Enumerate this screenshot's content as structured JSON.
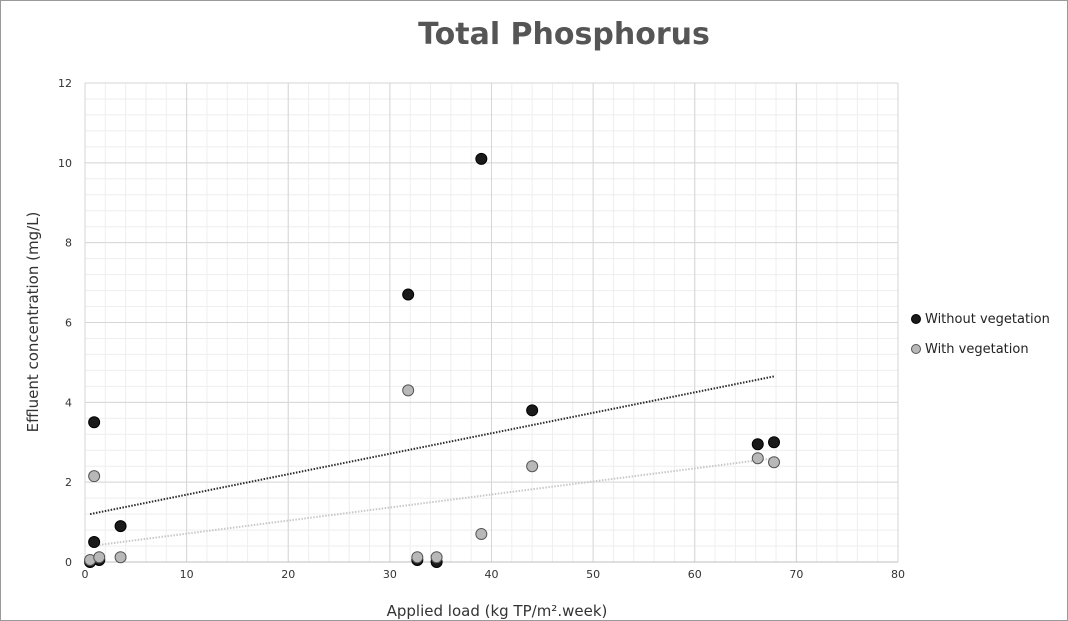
{
  "chart_data": {
    "type": "scatter",
    "title": "Total Phosphorus",
    "xlabel": "Applied load (kg TP/m².week)",
    "ylabel": "Effluent concentration (mg/L)",
    "xlim": [
      0,
      80
    ],
    "ylim": [
      0,
      12
    ],
    "x_ticks": [
      0,
      10,
      20,
      30,
      40,
      50,
      60,
      70,
      80
    ],
    "y_ticks": [
      0,
      2,
      4,
      6,
      8,
      10,
      12
    ],
    "grid": true,
    "legend_position": "right",
    "series": [
      {
        "name": "Without vegetation",
        "marker_fill": "#1a1a1a",
        "marker_stroke": "#000000",
        "trendline": {
          "type": "linear",
          "x": [
            0.5,
            67.8
          ],
          "y": [
            1.2,
            4.65
          ],
          "color": "#2a2a2a"
        },
        "points": [
          {
            "x": 0.5,
            "y": 0.0
          },
          {
            "x": 0.9,
            "y": 3.5
          },
          {
            "x": 0.9,
            "y": 0.5
          },
          {
            "x": 1.4,
            "y": 0.05
          },
          {
            "x": 3.5,
            "y": 0.9
          },
          {
            "x": 31.8,
            "y": 6.7
          },
          {
            "x": 32.7,
            "y": 0.05
          },
          {
            "x": 34.6,
            "y": 0.0
          },
          {
            "x": 39.0,
            "y": 10.1
          },
          {
            "x": 44.0,
            "y": 3.8
          },
          {
            "x": 66.2,
            "y": 2.95
          },
          {
            "x": 67.8,
            "y": 3.0
          }
        ]
      },
      {
        "name": "With vegetation",
        "marker_fill": "#b8b8b8",
        "marker_stroke": "#555555",
        "trendline": {
          "type": "linear",
          "x": [
            0.5,
            67.8
          ],
          "y": [
            0.4,
            2.6
          ],
          "color": "#c8c8c8"
        },
        "points": [
          {
            "x": 0.5,
            "y": 0.05
          },
          {
            "x": 0.9,
            "y": 2.15
          },
          {
            "x": 1.4,
            "y": 0.12
          },
          {
            "x": 3.5,
            "y": 0.12
          },
          {
            "x": 31.8,
            "y": 4.3
          },
          {
            "x": 32.7,
            "y": 0.12
          },
          {
            "x": 34.6,
            "y": 0.12
          },
          {
            "x": 39.0,
            "y": 0.7
          },
          {
            "x": 44.0,
            "y": 2.4
          },
          {
            "x": 66.2,
            "y": 2.6
          },
          {
            "x": 67.8,
            "y": 2.5
          }
        ]
      }
    ]
  }
}
